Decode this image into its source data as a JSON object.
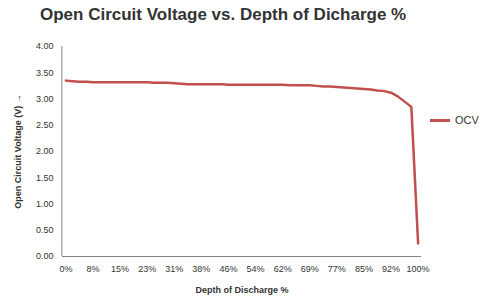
{
  "chart_data": {
    "type": "line",
    "title": "Open Circuit Voltage vs. Depth of Dicharge %",
    "x_label": "Depth of Discharge %",
    "y_label": "Open Circuit Voltage (V)",
    "categories": [
      "0%",
      null,
      null,
      null,
      "8%",
      null,
      null,
      null,
      "15%",
      null,
      null,
      null,
      "23%",
      null,
      null,
      null,
      "31%",
      null,
      null,
      null,
      "38%",
      null,
      null,
      null,
      "46%",
      null,
      null,
      null,
      "54%",
      null,
      null,
      null,
      "62%",
      null,
      null,
      null,
      "69%",
      null,
      null,
      null,
      "77%",
      null,
      null,
      null,
      "85%",
      null,
      null,
      null,
      "92%",
      null,
      null,
      null,
      "100%"
    ],
    "series": [
      {
        "name": "OCV",
        "color": "#c0504d",
        "values": [
          3.35,
          3.34,
          3.33,
          3.33,
          3.32,
          3.32,
          3.32,
          3.32,
          3.32,
          3.32,
          3.32,
          3.32,
          3.32,
          3.31,
          3.31,
          3.31,
          3.3,
          3.29,
          3.28,
          3.28,
          3.28,
          3.28,
          3.28,
          3.28,
          3.27,
          3.27,
          3.27,
          3.27,
          3.27,
          3.27,
          3.27,
          3.27,
          3.27,
          3.26,
          3.26,
          3.26,
          3.26,
          3.25,
          3.24,
          3.24,
          3.23,
          3.22,
          3.21,
          3.2,
          3.19,
          3.18,
          3.16,
          3.15,
          3.12,
          3.05,
          2.95,
          2.85,
          0.25
        ]
      }
    ],
    "ylim": [
      0,
      4
    ],
    "yticks": [
      {
        "value": 0,
        "label": "0.00"
      },
      {
        "value": 0.5,
        "label": "0.50"
      },
      {
        "value": 1,
        "label": "1.00"
      },
      {
        "value": 1.5,
        "label": "1.50"
      },
      {
        "value": 2,
        "label": "2.00"
      },
      {
        "value": 2.5,
        "label": "2.50"
      },
      {
        "value": 3,
        "label": "3.00"
      },
      {
        "value": 3.5,
        "label": "3.50"
      },
      {
        "value": 4,
        "label": "4.00"
      }
    ],
    "grid": false,
    "legend": "right"
  }
}
